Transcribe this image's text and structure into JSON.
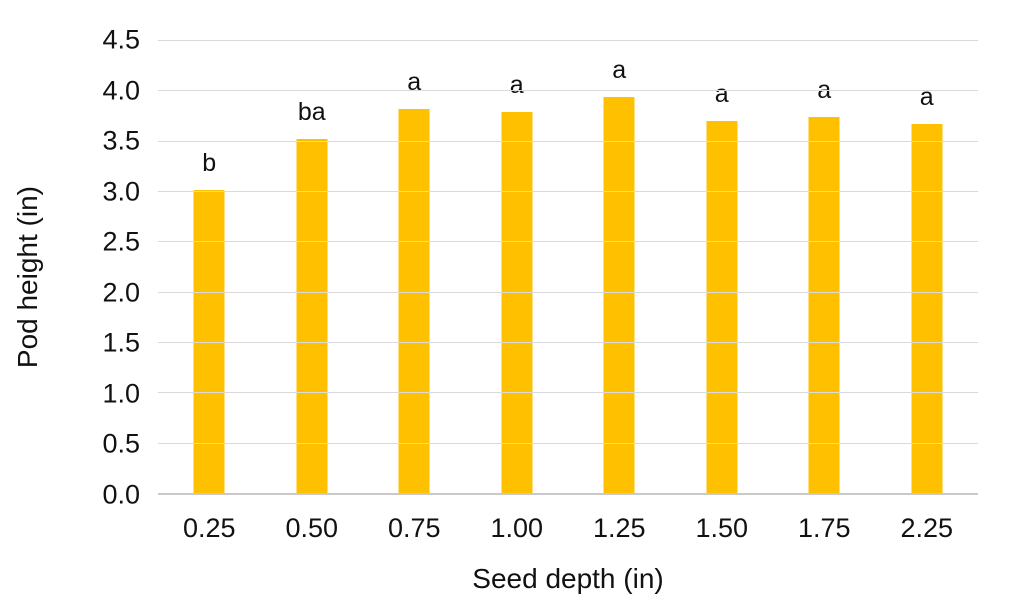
{
  "chart_data": {
    "type": "bar",
    "title": "",
    "xlabel": "Seed depth (in)",
    "ylabel": "Pod height (in)",
    "categories": [
      "0.25",
      "0.50",
      "0.75",
      "1.00",
      "1.25",
      "1.50",
      "1.75",
      "2.25"
    ],
    "values": [
      3.01,
      3.52,
      3.81,
      3.78,
      3.93,
      3.7,
      3.74,
      3.67
    ],
    "bar_labels": [
      "b",
      "ba",
      "a",
      "a",
      "a",
      "a",
      "a",
      "a"
    ],
    "y_ticks": [
      "0.0",
      "0.5",
      "1.0",
      "1.5",
      "2.0",
      "2.5",
      "3.0",
      "3.5",
      "4.0",
      "4.5"
    ],
    "ylim": [
      0,
      4.5
    ],
    "grid": true,
    "legend": "none",
    "bar_color": "#FFC000",
    "gridline_color": "#DADADA",
    "axis_line_color": "#C9C9C9",
    "text_color": "#111111"
  }
}
